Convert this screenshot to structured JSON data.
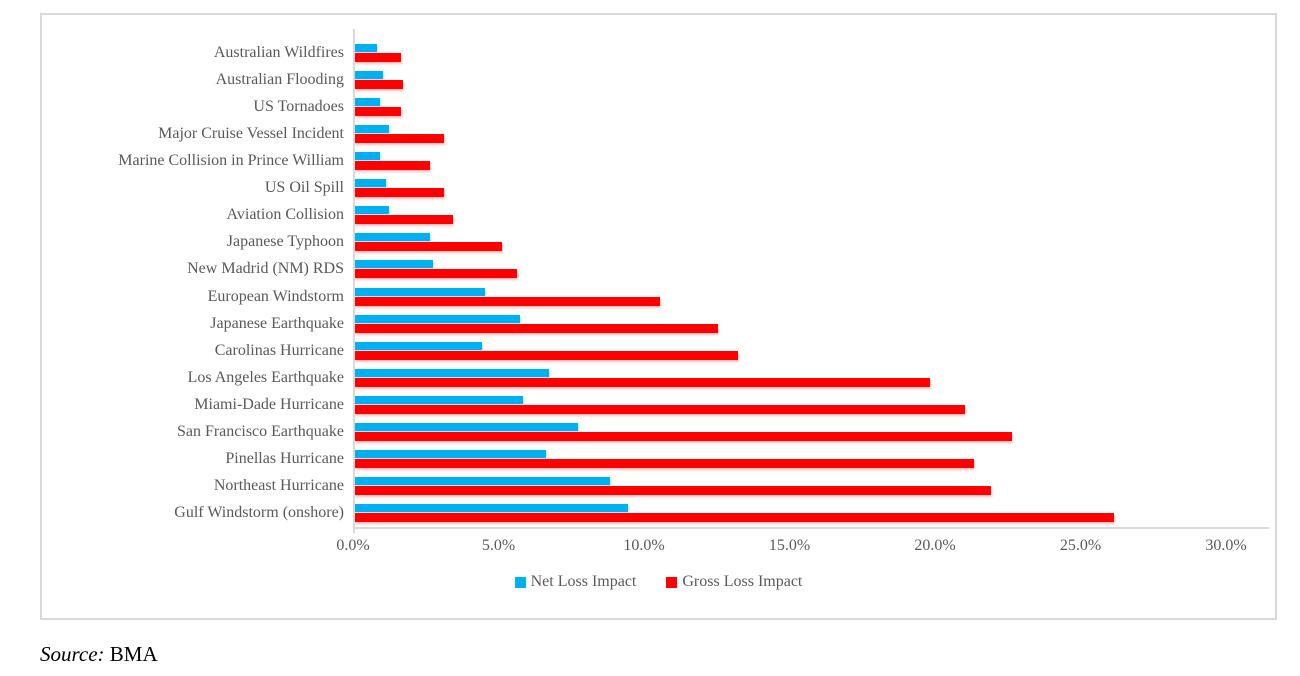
{
  "chart_data": {
    "type": "bar",
    "orientation": "horizontal",
    "title": "",
    "categories": [
      "Australian Wildfires",
      "Australian Flooding",
      "US Tornadoes",
      "Major Cruise Vessel Incident",
      "Marine Collision in Prince William",
      "US Oil Spill",
      "Aviation Collision",
      "Japanese Typhoon",
      "New Madrid (NM) RDS",
      "European Windstorm",
      "Japanese Earthquake",
      "Carolinas Hurricane",
      "Los Angeles Earthquake",
      "Miami-Dade Hurricane",
      "San Francisco Earthquake",
      "Pinellas Hurricane",
      "Northeast Hurricane",
      "Gulf Windstorm (onshore)"
    ],
    "series": [
      {
        "name": "Net Loss Impact",
        "color": "#00B0F0",
        "values": [
          0.8,
          1.0,
          0.9,
          1.2,
          0.9,
          1.1,
          1.2,
          2.6,
          2.7,
          4.5,
          5.7,
          4.4,
          6.7,
          5.8,
          7.7,
          6.6,
          8.8,
          9.4
        ]
      },
      {
        "name": "Gross Loss Impact",
        "color": "#FF0000",
        "values": [
          1.6,
          1.7,
          1.6,
          3.1,
          2.6,
          3.1,
          3.4,
          5.1,
          5.6,
          10.5,
          12.5,
          13.2,
          19.8,
          21.0,
          22.6,
          21.3,
          21.9,
          26.1
        ]
      }
    ],
    "x_ticks": [
      "0.0%",
      "5.0%",
      "10.0%",
      "15.0%",
      "20.0%",
      "25.0%",
      "30.0%"
    ],
    "xlim": [
      0,
      30
    ],
    "unit": "%",
    "grid": false,
    "legend_position": "bottom"
  },
  "source": {
    "label": "Source:",
    "value": "BMA"
  },
  "colors": {
    "net_loss": "#00B0F0",
    "gross_loss": "#FF0000",
    "axis": "#D9D9D9",
    "text": "#595959"
  }
}
